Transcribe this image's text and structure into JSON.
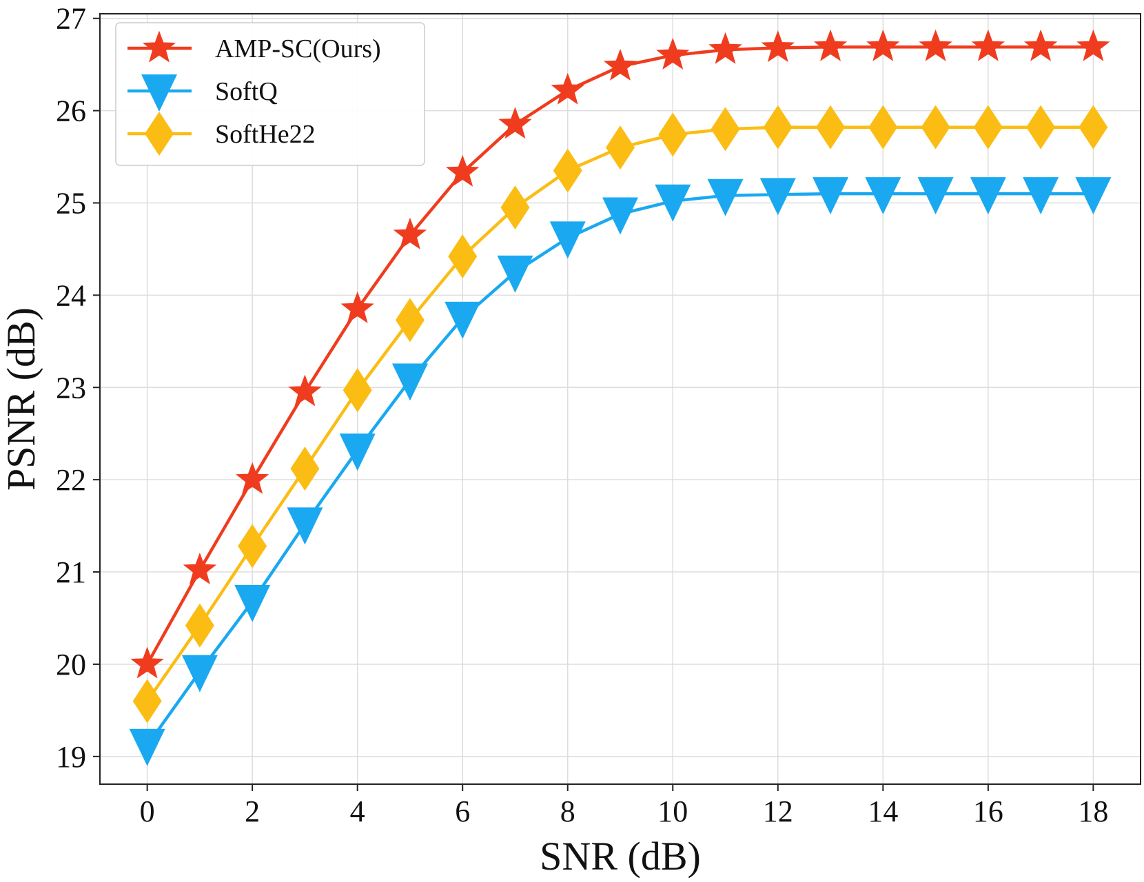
{
  "chart_data": {
    "type": "line",
    "title": "",
    "xlabel": "SNR (dB)",
    "ylabel": "PSNR (dB)",
    "xlim": [
      -0.9,
      18.9
    ],
    "ylim": [
      18.7,
      27.05
    ],
    "xticks": [
      0,
      2,
      4,
      6,
      8,
      10,
      12,
      14,
      16,
      18
    ],
    "yticks": [
      19,
      20,
      21,
      22,
      23,
      24,
      25,
      26,
      27
    ],
    "grid": true,
    "legend_position": "top-left",
    "x": [
      0,
      1,
      2,
      3,
      4,
      5,
      6,
      7,
      8,
      9,
      10,
      11,
      12,
      13,
      14,
      15,
      16,
      17,
      18
    ],
    "series": [
      {
        "name": "AMP-SC(Ours)",
        "color": "#f03c1e",
        "marker": "star",
        "values": [
          20.0,
          21.02,
          22.0,
          22.95,
          23.85,
          24.65,
          25.33,
          25.85,
          26.22,
          26.48,
          26.6,
          26.66,
          26.68,
          26.69,
          26.69,
          26.69,
          26.69,
          26.69,
          26.69
        ]
      },
      {
        "name": "SoftQ",
        "color": "#1aa9f0",
        "marker": "triangle-down",
        "values": [
          19.12,
          19.92,
          20.68,
          21.52,
          22.32,
          23.08,
          23.75,
          24.25,
          24.62,
          24.88,
          25.02,
          25.08,
          25.09,
          25.1,
          25.1,
          25.1,
          25.1,
          25.1,
          25.1
        ]
      },
      {
        "name": "SoftHe22",
        "color": "#fbbd14",
        "marker": "diamond",
        "values": [
          19.6,
          20.42,
          21.28,
          22.12,
          22.97,
          23.73,
          24.42,
          24.95,
          25.35,
          25.6,
          25.74,
          25.8,
          25.82,
          25.82,
          25.82,
          25.82,
          25.82,
          25.82,
          25.82
        ]
      }
    ]
  }
}
